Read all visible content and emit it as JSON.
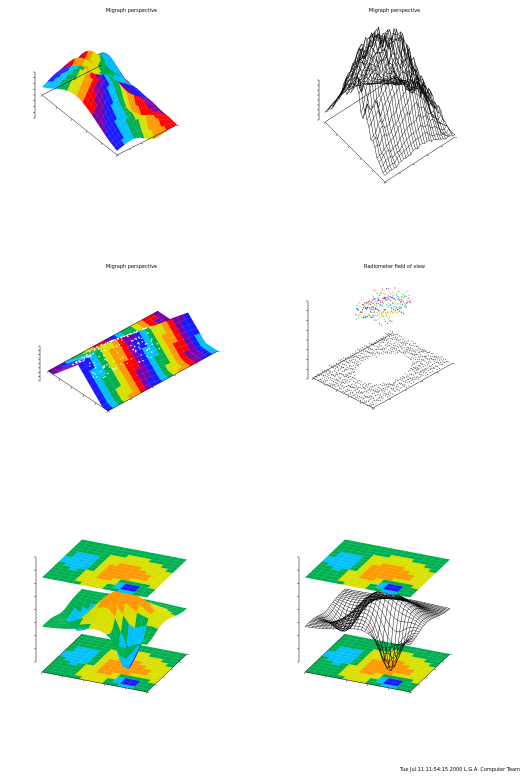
{
  "panels": [
    {
      "title": "Migraph perspective"
    },
    {
      "title": "Migraph perspective"
    },
    {
      "title": "Migraph perspective"
    },
    {
      "title": "Radiometer field of view"
    },
    {
      "title": ""
    },
    {
      "title": ""
    }
  ],
  "footer": "Tue Jul 11 11:54:15 2000 L.G.A. Computer Team",
  "colors": {
    "surface_palette": [
      "#7a00a8",
      "#1a1aff",
      "#00c0ff",
      "#00b050",
      "#d8e000",
      "#ff9900",
      "#ff0000"
    ],
    "wire": "#000000"
  },
  "chart_data": [
    {
      "type": "surface",
      "style": "filled",
      "title": "Migraph perspective",
      "xlabel": "X",
      "ylabel": "Y",
      "zlabel": "Z"
    },
    {
      "type": "surface",
      "style": "wireframe",
      "title": "Migraph perspective",
      "xlabel": "X",
      "ylabel": "Y",
      "zlabel": "Z"
    },
    {
      "type": "surface",
      "style": "filled-dotted",
      "title": "Migraph perspective",
      "xlabel": "X",
      "ylabel": "Y",
      "zlabel": "Z"
    },
    {
      "type": "surface",
      "style": "colored-points",
      "title": "Radiometer field of view",
      "xlabel": "X",
      "ylabel": "Y",
      "zlabel": "Z"
    },
    {
      "type": "surface",
      "style": "filled-with-contour-planes",
      "xlabel": "X",
      "ylabel": "Y",
      "zlabel": "Z"
    },
    {
      "type": "surface",
      "style": "wireframe-with-contour-planes",
      "xlabel": "X",
      "ylabel": "Y",
      "zlabel": "Z"
    }
  ]
}
